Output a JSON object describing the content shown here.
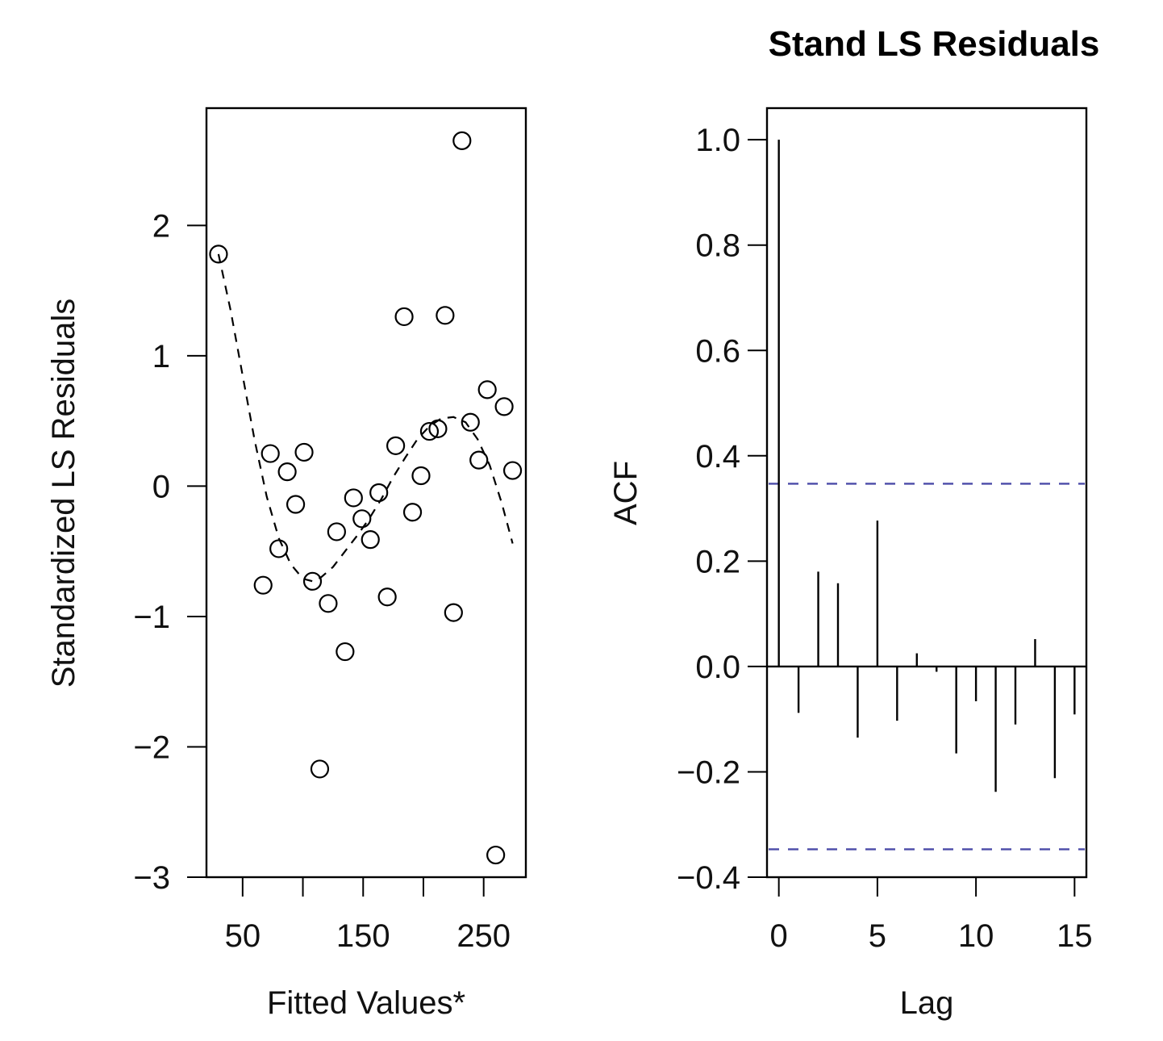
{
  "chart_data": [
    {
      "type": "scatter",
      "title": "",
      "xlabel": "Fitted Values*",
      "ylabel": "Standardized LS Residuals",
      "xlim": [
        20,
        285
      ],
      "ylim": [
        -3.0,
        2.9
      ],
      "xticks": [
        50,
        100,
        150,
        200,
        250
      ],
      "xtick_labels": [
        "50",
        "150",
        "250"
      ],
      "yticks": [
        -3,
        -2,
        -1,
        0,
        1,
        2
      ],
      "ytick_labels": [
        "−3",
        "−2",
        "−1",
        "0",
        "1",
        "2"
      ],
      "points": [
        {
          "x": 30,
          "y": 1.78
        },
        {
          "x": 67,
          "y": -0.76
        },
        {
          "x": 73,
          "y": 0.25
        },
        {
          "x": 80,
          "y": -0.48
        },
        {
          "x": 87,
          "y": 0.11
        },
        {
          "x": 94,
          "y": -0.14
        },
        {
          "x": 101,
          "y": 0.26
        },
        {
          "x": 108,
          "y": -0.73
        },
        {
          "x": 114,
          "y": -2.17
        },
        {
          "x": 121,
          "y": -0.9
        },
        {
          "x": 128,
          "y": -0.35
        },
        {
          "x": 135,
          "y": -1.27
        },
        {
          "x": 142,
          "y": -0.09
        },
        {
          "x": 149,
          "y": -0.25
        },
        {
          "x": 156,
          "y": -0.41
        },
        {
          "x": 163,
          "y": -0.05
        },
        {
          "x": 170,
          "y": -0.85
        },
        {
          "x": 177,
          "y": 0.31
        },
        {
          "x": 184,
          "y": 1.3
        },
        {
          "x": 191,
          "y": -0.2
        },
        {
          "x": 198,
          "y": 0.08
        },
        {
          "x": 205,
          "y": 0.42
        },
        {
          "x": 212,
          "y": 0.44
        },
        {
          "x": 218,
          "y": 1.31
        },
        {
          "x": 225,
          "y": -0.97
        },
        {
          "x": 232,
          "y": 2.65
        },
        {
          "x": 239,
          "y": 0.49
        },
        {
          "x": 246,
          "y": 0.2
        },
        {
          "x": 253,
          "y": 0.74
        },
        {
          "x": 260,
          "y": -2.83
        },
        {
          "x": 267,
          "y": 0.61
        },
        {
          "x": 274,
          "y": 0.12
        }
      ],
      "smooth_line": {
        "style": "dashed",
        "x": [
          30,
          40,
          50,
          60,
          70,
          80,
          90,
          100,
          108,
          115,
          125,
          135,
          145,
          155,
          165,
          175,
          185,
          195,
          205,
          215,
          225,
          235,
          245,
          255,
          265,
          274
        ],
        "y": [
          1.78,
          1.35,
          0.85,
          0.35,
          -0.08,
          -0.4,
          -0.6,
          -0.71,
          -0.73,
          -0.7,
          -0.62,
          -0.5,
          -0.38,
          -0.25,
          -0.1,
          0.07,
          0.22,
          0.36,
          0.46,
          0.52,
          0.53,
          0.49,
          0.36,
          0.16,
          -0.13,
          -0.44
        ]
      }
    },
    {
      "type": "bar",
      "title": "Stand LS Residuals",
      "xlabel": "Lag",
      "ylabel": "ACF",
      "xlim": [
        -0.6,
        15.6
      ],
      "ylim": [
        -0.4,
        1.06
      ],
      "xticks": [
        0,
        5,
        10,
        15
      ],
      "xtick_labels": [
        "0",
        "5",
        "10",
        "15"
      ],
      "yticks": [
        -0.4,
        -0.2,
        0.0,
        0.2,
        0.4,
        0.6,
        0.8,
        1.0
      ],
      "ytick_labels": [
        "−0.4",
        "−0.2",
        "0.0",
        "0.2",
        "0.4",
        "0.6",
        "0.8",
        "1.0"
      ],
      "lags": [
        0,
        1,
        2,
        3,
        4,
        5,
        6,
        7,
        8,
        9,
        10,
        11,
        12,
        13,
        14,
        15
      ],
      "acf": [
        1.0,
        -0.088,
        0.18,
        0.158,
        -0.135,
        0.277,
        -0.103,
        0.025,
        -0.01,
        -0.165,
        -0.066,
        -0.238,
        -0.11,
        0.052,
        -0.212,
        -0.091
      ],
      "confidence_bound": 0.347,
      "confidence_color": "#4a4aa8"
    }
  ]
}
